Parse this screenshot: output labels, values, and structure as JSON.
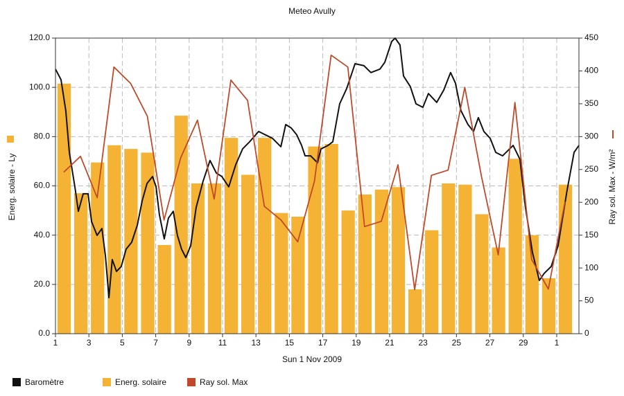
{
  "chart_data": {
    "type": "bar-line",
    "title": "Meteo  Avully",
    "x_label": "Sun 1 Nov 2009",
    "y_label": "Energ. solaire - Ly",
    "y2_label": "Ray sol. Max - W/m²",
    "xlim": [
      1,
      32.33
    ],
    "xticks": [
      1,
      3,
      5,
      7,
      9,
      11,
      13,
      15,
      17,
      19,
      21,
      23,
      25,
      27,
      29,
      {
        "value": 31,
        "label": "1"
      }
    ],
    "ylim": [
      0,
      120
    ],
    "yticks": [
      {
        "value": 0,
        "label": "0.0"
      },
      {
        "value": 20,
        "label": "20.0"
      },
      {
        "value": 40,
        "label": "40.0"
      },
      {
        "value": 60,
        "label": "60.0"
      },
      {
        "value": 80,
        "label": "80.0"
      },
      {
        "value": 100,
        "label": "100.0"
      },
      {
        "value": 120,
        "label": "120.0"
      }
    ],
    "y2lim": [
      0,
      450
    ],
    "y2ticks": [
      0,
      50,
      100,
      150,
      200,
      250,
      300,
      350,
      400,
      450
    ],
    "grid": true,
    "days": [
      1,
      2,
      3,
      4,
      5,
      6,
      7,
      8,
      9,
      10,
      11,
      12,
      13,
      14,
      15,
      16,
      17,
      18,
      19,
      20,
      21,
      22,
      23,
      24,
      25,
      26,
      27,
      28,
      29,
      30,
      31
    ],
    "series": [
      {
        "name": "Baromètre",
        "kind": "line",
        "color": "#111111",
        "x": [
          1.0,
          1.33,
          1.62,
          1.83,
          2.16,
          2.37,
          2.66,
          2.95,
          3.16,
          3.49,
          3.78,
          3.99,
          4.2,
          4.4,
          4.65,
          4.94,
          5.23,
          5.56,
          5.9,
          6.19,
          6.48,
          6.81,
          7.02,
          7.22,
          7.51,
          7.76,
          8.05,
          8.3,
          8.55,
          8.8,
          9.09,
          9.42,
          9.83,
          10.25,
          10.63,
          10.96,
          11.37,
          11.79,
          12.2,
          12.62,
          13.16,
          13.57,
          13.99,
          14.49,
          14.78,
          15.11,
          15.44,
          15.73,
          15.94,
          16.27,
          16.68,
          16.89,
          17.31,
          17.6,
          18.01,
          18.43,
          18.93,
          19.46,
          19.88,
          20.42,
          20.71,
          21.12,
          21.33,
          21.62,
          21.83,
          22.24,
          22.58,
          22.99,
          23.32,
          23.82,
          24.24,
          24.65,
          24.94,
          25.27,
          25.69,
          26.02,
          26.31,
          26.64,
          27.02,
          27.35,
          27.76,
          28.39,
          28.8,
          29.13,
          29.55,
          29.96,
          30.25,
          30.67,
          31.08,
          31.62,
          32.04,
          32.33
        ],
        "values": [
          107.4,
          103.1,
          90.5,
          73.6,
          59.6,
          49.7,
          56.8,
          56.8,
          45.5,
          39.9,
          42.7,
          31.5,
          14.6,
          30.1,
          25.3,
          27.3,
          34.3,
          37.1,
          44.1,
          54.0,
          61.0,
          63.8,
          59.6,
          48.3,
          38.5,
          46.9,
          49.7,
          39.9,
          34.3,
          30.9,
          35.7,
          51.2,
          61.8,
          70.3,
          65.2,
          63.8,
          59.6,
          68.6,
          75.0,
          77.9,
          82.1,
          80.7,
          79.3,
          75.9,
          84.9,
          83.5,
          80.7,
          76.4,
          72.2,
          72.2,
          69.4,
          75.0,
          76.4,
          77.9,
          93.3,
          99.5,
          109.6,
          108.8,
          106.0,
          107.4,
          110.2,
          118.6,
          120.0,
          117.2,
          104.6,
          100.3,
          93.3,
          91.9,
          97.5,
          93.9,
          98.9,
          106.0,
          101.7,
          90.5,
          84.9,
          82.1,
          87.7,
          82.1,
          79.3,
          73.6,
          72.2,
          76.4,
          70.8,
          51.2,
          32.9,
          21.6,
          24.5,
          27.3,
          35.7,
          58.2,
          73.6,
          76.4
        ]
      },
      {
        "name": "Energ. solaire",
        "kind": "bar",
        "color": "#f5b335",
        "values": [
          101.5,
          57,
          69.5,
          76.5,
          75,
          73.5,
          36,
          88.5,
          61,
          61,
          79.5,
          64.5,
          79.5,
          49,
          47.5,
          76,
          77,
          50,
          56.5,
          58.5,
          59.5,
          18,
          42,
          61,
          60.5,
          48.5,
          35,
          71,
          40,
          22.5,
          60.5
        ]
      },
      {
        "name": "Ray sol. Max",
        "kind": "line",
        "axis": "y2",
        "color": "#c0492a",
        "values": [
          246,
          270,
          207,
          406,
          381,
          331,
          173,
          268,
          325,
          205,
          386,
          355,
          194,
          173,
          140,
          232,
          424,
          406,
          163,
          171,
          257,
          67,
          241,
          249,
          375,
          239,
          120,
          352,
          113,
          68,
          201
        ]
      }
    ]
  }
}
